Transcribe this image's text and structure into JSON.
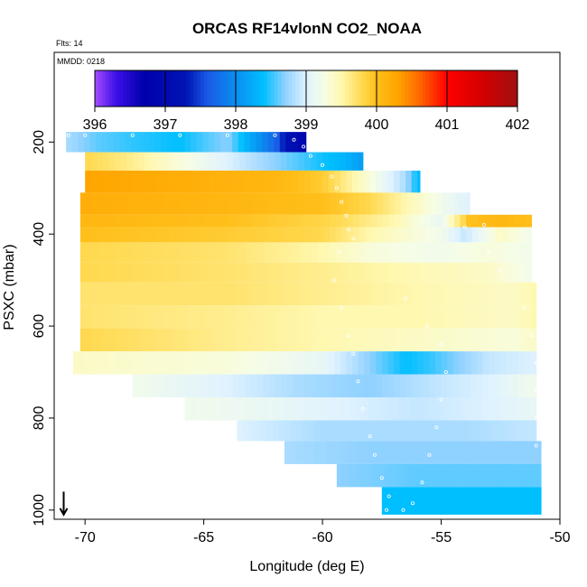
{
  "chart_data": {
    "type": "heatmap",
    "title": "ORCAS RF14vlonN CO2_NOAA",
    "subtitle_flights": "Flts: 14",
    "subtitle_date": "MMDD: 0218",
    "xlabel": "Longitude (deg E)",
    "ylabel": "PSXC (mbar)",
    "xlim": [
      -71.3,
      -50
    ],
    "ylim": [
      1020,
      5
    ],
    "y_reversed": true,
    "x_ticks": [
      -70,
      -65,
      -60,
      -55,
      -50
    ],
    "x_tick_labels": [
      "-70",
      "-65",
      "-60",
      "-55",
      "-50"
    ],
    "y_ticks": [
      200,
      400,
      600,
      800,
      1000
    ],
    "y_tick_labels": [
      "200",
      "400",
      "600",
      "800",
      "1000"
    ],
    "colorbar": {
      "range": [
        396,
        402
      ],
      "ticks": [
        396,
        397,
        398,
        399,
        400,
        401,
        402
      ],
      "tick_labels": [
        "396",
        "397",
        "398",
        "399",
        "400",
        "401",
        "402"
      ],
      "stops": [
        {
          "v": 396.0,
          "c": "#a64dff"
        },
        {
          "v": 396.3,
          "c": "#3b10e8"
        },
        {
          "v": 396.7,
          "c": "#0000aa"
        },
        {
          "v": 397.3,
          "c": "#0015b5"
        },
        {
          "v": 397.6,
          "c": "#1a5ae6"
        },
        {
          "v": 398.0,
          "c": "#0a8ef0"
        },
        {
          "v": 398.4,
          "c": "#00bfff"
        },
        {
          "v": 398.7,
          "c": "#8fd1ff"
        },
        {
          "v": 399.0,
          "c": "#dff2ff"
        },
        {
          "v": 399.25,
          "c": "#f6fde6"
        },
        {
          "v": 399.5,
          "c": "#fff8b0"
        },
        {
          "v": 399.8,
          "c": "#ffd84d"
        },
        {
          "v": 400.0,
          "c": "#ffbf1a"
        },
        {
          "v": 400.3,
          "c": "#ffa500"
        },
        {
          "v": 400.6,
          "c": "#ff6a00"
        },
        {
          "v": 401.0,
          "c": "#ff0000"
        },
        {
          "v": 401.5,
          "c": "#d40000"
        },
        {
          "v": 402.0,
          "c": "#a01010"
        }
      ]
    },
    "bands": [
      {
        "p_top": 178,
        "p_bot": 222,
        "lon_min": -70.8,
        "lon_max": -60.7,
        "knots": [
          [
            -70.8,
            398.8
          ],
          [
            -69.5,
            398.6
          ],
          [
            -68,
            398.5
          ],
          [
            -66,
            398.4
          ],
          [
            -64,
            398.7
          ],
          [
            -63,
            398.2
          ],
          [
            -62,
            397.7
          ],
          [
            -61.5,
            397.2
          ],
          [
            -60.8,
            396.9
          ]
        ]
      },
      {
        "p_top": 222,
        "p_bot": 262,
        "lon_min": -70.0,
        "lon_max": -58.3,
        "knots": [
          [
            -70,
            399.8
          ],
          [
            -68,
            399.6
          ],
          [
            -66,
            399.3
          ],
          [
            -64,
            399.0
          ],
          [
            -62,
            398.7
          ],
          [
            -60.5,
            398.5
          ],
          [
            -59,
            398.3
          ],
          [
            -58.3,
            398.1
          ]
        ]
      },
      {
        "p_top": 262,
        "p_bot": 310,
        "lon_min": -70.0,
        "lon_max": -55.9,
        "knots": [
          [
            -70,
            400.3
          ],
          [
            -66,
            400.2
          ],
          [
            -62,
            400.1
          ],
          [
            -60,
            399.9
          ],
          [
            -58,
            399.3
          ],
          [
            -56.5,
            398.8
          ],
          [
            -55.9,
            398.3
          ]
        ]
      },
      {
        "p_top": 310,
        "p_bot": 358,
        "lon_min": -70.2,
        "lon_max": -53.8,
        "knots": [
          [
            -70.2,
            400.2
          ],
          [
            -64,
            400.1
          ],
          [
            -60,
            400.0
          ],
          [
            -58,
            399.8
          ],
          [
            -56,
            399.4
          ],
          [
            -54.5,
            399.1
          ],
          [
            -53.8,
            399.0
          ]
        ]
      },
      {
        "p_top": 358,
        "p_bot": 385,
        "lon_min": -70.2,
        "lon_max": -51.2,
        "knots": [
          [
            -70.2,
            400.1
          ],
          [
            -64,
            400.0
          ],
          [
            -59.5,
            399.8
          ],
          [
            -57,
            399.5
          ],
          [
            -55,
            399.1
          ],
          [
            -53.8,
            400.0
          ],
          [
            -52.5,
            400.1
          ],
          [
            -51.2,
            400.0
          ]
        ]
      },
      {
        "p_top": 385,
        "p_bot": 418,
        "lon_min": -70.2,
        "lon_max": -51.2,
        "knots": [
          [
            -70.2,
            400.0
          ],
          [
            -64,
            399.9
          ],
          [
            -60,
            399.8
          ],
          [
            -58,
            399.5
          ],
          [
            -55,
            399.2
          ],
          [
            -54,
            398.9
          ],
          [
            -52.5,
            399.4
          ],
          [
            -51.2,
            399.2
          ]
        ]
      },
      {
        "p_top": 418,
        "p_bot": 462,
        "lon_min": -70.2,
        "lon_max": -51.2,
        "knots": [
          [
            -70.2,
            399.8
          ],
          [
            -64,
            399.7
          ],
          [
            -60,
            399.5
          ],
          [
            -58,
            399.3
          ],
          [
            -55,
            399.2
          ],
          [
            -53,
            399.3
          ],
          [
            -51.2,
            399.2
          ]
        ]
      },
      {
        "p_top": 462,
        "p_bot": 505,
        "lon_min": -70.2,
        "lon_max": -51.2,
        "knots": [
          [
            -70.2,
            399.8
          ],
          [
            -64,
            399.7
          ],
          [
            -60,
            399.6
          ],
          [
            -57,
            399.5
          ],
          [
            -53,
            399.4
          ],
          [
            -51.2,
            399.2
          ]
        ]
      },
      {
        "p_top": 505,
        "p_bot": 555,
        "lon_min": -70.2,
        "lon_max": -51.0,
        "knots": [
          [
            -70.2,
            399.7
          ],
          [
            -64,
            399.7
          ],
          [
            -60,
            399.6
          ],
          [
            -56,
            399.5
          ],
          [
            -52,
            399.4
          ],
          [
            -51,
            399.5
          ]
        ]
      },
      {
        "p_top": 555,
        "p_bot": 605,
        "lon_min": -70.2,
        "lon_max": -51.0,
        "knots": [
          [
            -70.2,
            399.7
          ],
          [
            -64,
            399.6
          ],
          [
            -60,
            399.5
          ],
          [
            -56,
            399.5
          ],
          [
            -52,
            399.4
          ],
          [
            -51,
            399.5
          ]
        ]
      },
      {
        "p_top": 605,
        "p_bot": 655,
        "lon_min": -70.2,
        "lon_max": -51.0,
        "knots": [
          [
            -70.2,
            399.8
          ],
          [
            -64,
            399.6
          ],
          [
            -60,
            399.5
          ],
          [
            -56,
            399.4
          ],
          [
            -52,
            399.3
          ],
          [
            -51,
            399.4
          ]
        ]
      },
      {
        "p_top": 655,
        "p_bot": 705,
        "lon_min": -70.5,
        "lon_max": -51.0,
        "knots": [
          [
            -70.5,
            399.4
          ],
          [
            -64,
            399.3
          ],
          [
            -60,
            399.1
          ],
          [
            -58,
            398.7
          ],
          [
            -56.5,
            398.4
          ],
          [
            -55.5,
            398.5
          ],
          [
            -53,
            398.9
          ],
          [
            -51,
            399.0
          ]
        ]
      },
      {
        "p_top": 705,
        "p_bot": 755,
        "lon_min": -68.0,
        "lon_max": -51.0,
        "knots": [
          [
            -68,
            399.2
          ],
          [
            -64,
            399.0
          ],
          [
            -61,
            398.8
          ],
          [
            -58,
            398.7
          ],
          [
            -55,
            398.9
          ],
          [
            -53,
            399.0
          ],
          [
            -51,
            399.2
          ]
        ]
      },
      {
        "p_top": 755,
        "p_bot": 805,
        "lon_min": -65.8,
        "lon_max": -51.0,
        "knots": [
          [
            -65.8,
            399.2
          ],
          [
            -62,
            399.1
          ],
          [
            -59,
            399.0
          ],
          [
            -56,
            398.9
          ],
          [
            -53,
            399.0
          ],
          [
            -51,
            399.1
          ]
        ]
      },
      {
        "p_top": 805,
        "p_bot": 850,
        "lon_min": -63.6,
        "lon_max": -51.0,
        "knots": [
          [
            -63.6,
            399.0
          ],
          [
            -60,
            398.8
          ],
          [
            -57,
            398.8
          ],
          [
            -54,
            398.8
          ],
          [
            -51,
            398.9
          ]
        ]
      },
      {
        "p_top": 850,
        "p_bot": 900,
        "lon_min": -61.6,
        "lon_max": -50.8,
        "knots": [
          [
            -61.6,
            398.8
          ],
          [
            -58,
            398.7
          ],
          [
            -55,
            398.7
          ],
          [
            -52,
            398.7
          ],
          [
            -50.8,
            398.7
          ]
        ]
      },
      {
        "p_top": 900,
        "p_bot": 950,
        "lon_min": -59.4,
        "lon_max": -50.8,
        "knots": [
          [
            -59.4,
            398.7
          ],
          [
            -56,
            398.6
          ],
          [
            -53,
            398.6
          ],
          [
            -50.8,
            398.6
          ]
        ]
      },
      {
        "p_top": 950,
        "p_bot": 1010,
        "lon_min": -57.5,
        "lon_max": -50.8,
        "knots": [
          [
            -57.5,
            398.4
          ],
          [
            -55,
            398.4
          ],
          [
            -53,
            398.4
          ],
          [
            -50.8,
            398.4
          ]
        ]
      }
    ],
    "flight_track": [
      [
        -70.7,
        185
      ],
      [
        -70.0,
        185
      ],
      [
        -68.0,
        185
      ],
      [
        -66.0,
        185
      ],
      [
        -64.0,
        185
      ],
      [
        -62.0,
        185
      ],
      [
        -61.2,
        195
      ],
      [
        -60.8,
        210
      ],
      [
        -60.5,
        230
      ],
      [
        -60.0,
        250
      ],
      [
        -59.6,
        275
      ],
      [
        -59.4,
        300
      ],
      [
        -59.2,
        330
      ],
      [
        -59.0,
        360
      ],
      [
        -58.9,
        390
      ],
      [
        -58.7,
        410
      ],
      [
        -54.0,
        385
      ],
      [
        -53.2,
        380
      ],
      [
        -59.3,
        440
      ],
      [
        -59.5,
        500
      ],
      [
        -59.2,
        560
      ],
      [
        -58.9,
        620
      ],
      [
        -58.7,
        660
      ],
      [
        -58.5,
        720
      ],
      [
        -58.3,
        780
      ],
      [
        -58.0,
        840
      ],
      [
        -57.8,
        880
      ],
      [
        -57.5,
        930
      ],
      [
        -57.2,
        970
      ],
      [
        -57.3,
        1000
      ],
      [
        -56.6,
        1000
      ],
      [
        -56.2,
        985
      ],
      [
        -55.8,
        940
      ],
      [
        -55.5,
        880
      ],
      [
        -55.2,
        820
      ],
      [
        -55.0,
        760
      ],
      [
        -54.8,
        700
      ],
      [
        -55.0,
        640
      ],
      [
        -55.6,
        600
      ],
      [
        -56.5,
        540
      ],
      [
        -53.0,
        440
      ],
      [
        -52.5,
        480
      ],
      [
        -51.5,
        560
      ],
      [
        -51.2,
        620
      ],
      [
        -51.0,
        680
      ],
      [
        -51.0,
        740
      ],
      [
        -51.0,
        800
      ],
      [
        -51.0,
        860
      ]
    ],
    "arrow_marker": {
      "lon": -70.9,
      "p_from": 960,
      "p_to": 1010
    }
  }
}
